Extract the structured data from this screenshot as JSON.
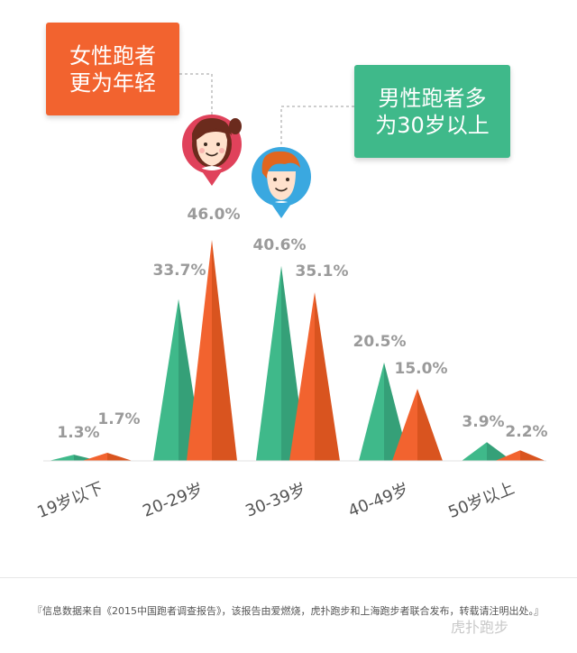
{
  "callouts": {
    "female": {
      "line1": "女性跑者",
      "line2": "更为年轻"
    },
    "male": {
      "line1": "男性跑者多",
      "line2": "为30岁以上"
    }
  },
  "footer": {
    "source": "『信息数据来自《2015中国跑者调查报告》，该报告由爱燃烧，虎扑跑步和上海跑步者联合发布，转载请注明出处。』",
    "watermark": "虎扑跑步"
  },
  "colors": {
    "male": "#3fb98a",
    "female": "#f2632f",
    "label": "#9a9a9a",
    "axis": "#cfcfcf"
  },
  "icons": {
    "female": "female-runner-avatar-icon",
    "male": "male-runner-avatar-icon"
  },
  "chart_data": {
    "type": "area",
    "categories": [
      "19岁以下",
      "20-29岁",
      "30-39岁",
      "40-49岁",
      "50岁以上"
    ],
    "series": [
      {
        "values": [
          1.3,
          33.7,
          40.6,
          20.5,
          3.9
        ],
        "color": "#3fb98a"
      },
      {
        "values": [
          1.7,
          46.0,
          35.1,
          15.0,
          2.2
        ],
        "color": "#f2632f"
      }
    ],
    "value_labels": [
      [
        "1.3%",
        "33.7%",
        "40.6%",
        "20.5%",
        "3.9%"
      ],
      [
        "1.7%",
        "46.0%",
        "35.1%",
        "15.0%",
        "2.2%"
      ]
    ],
    "ylim": [
      0,
      46.0
    ],
    "grid": false,
    "legend": "none"
  }
}
